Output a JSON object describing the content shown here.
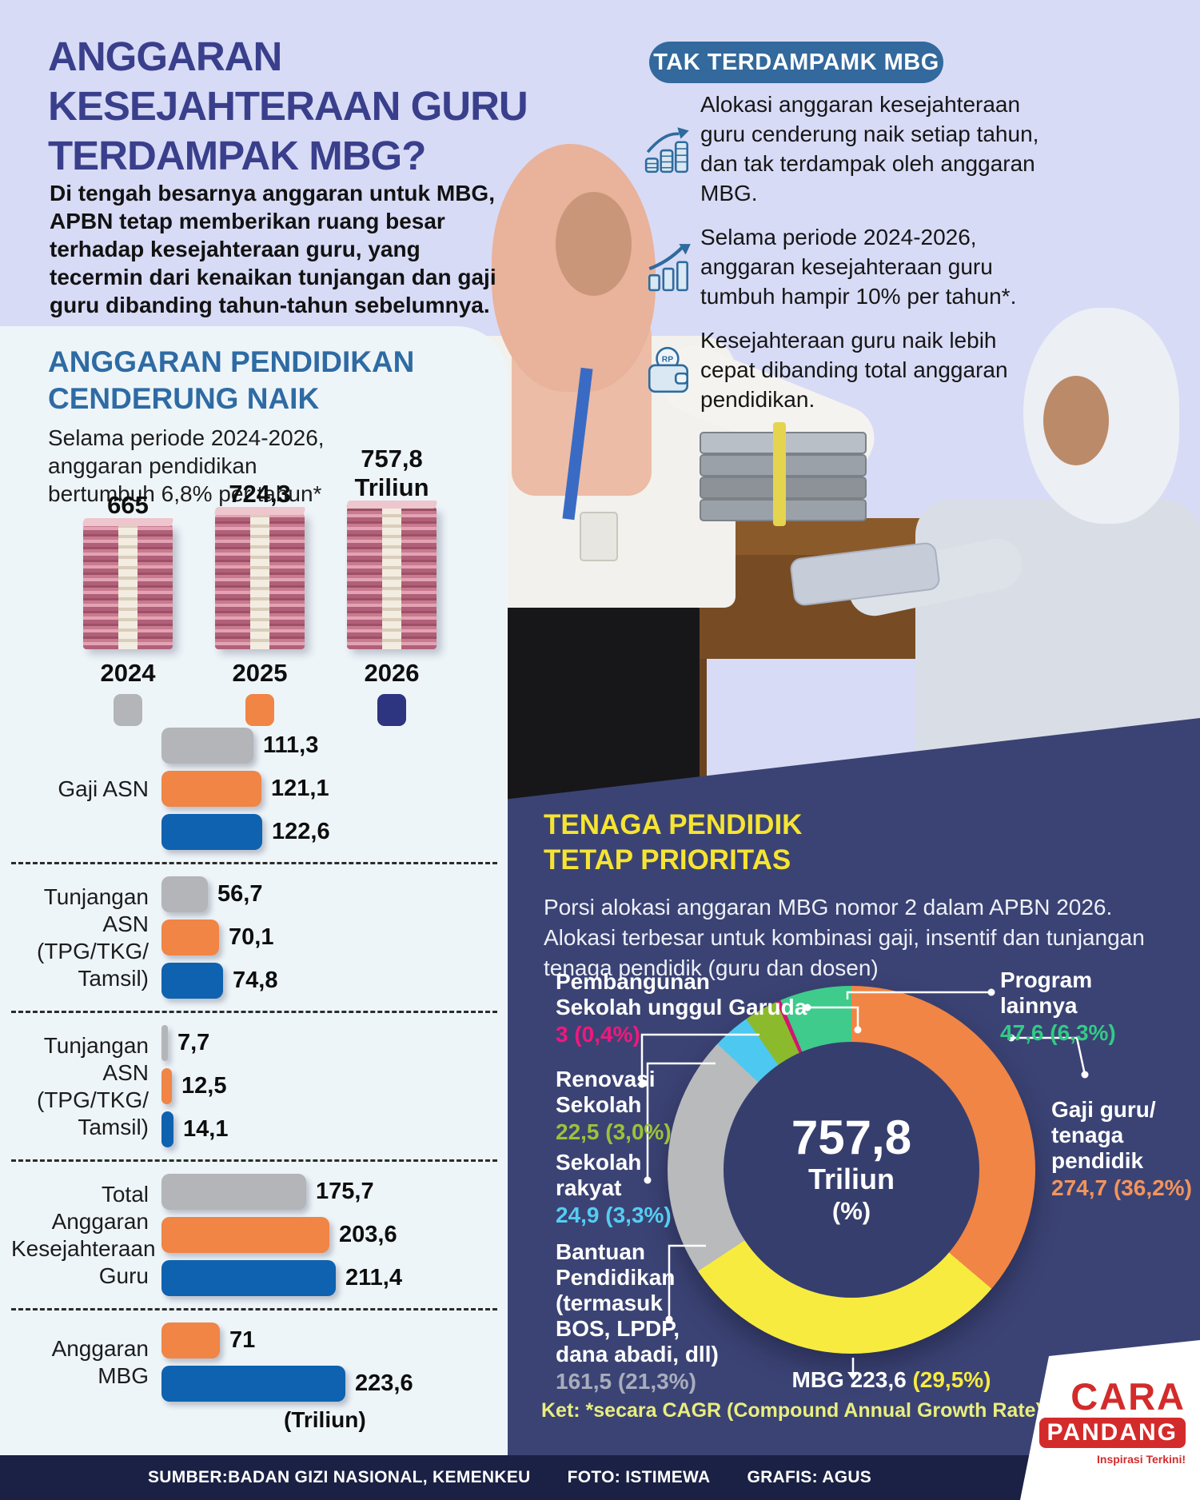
{
  "header": {
    "title_lines": [
      "ANGGARAN",
      "KESEJAHTERAAN GURU",
      "TERDAMPAK MBG?"
    ],
    "intro": "Di tengah besarnya anggaran untuk MBG, APBN tetap memberikan ruang besar terhadap kesejahteraan guru, yang tecermin dari kenaikan tunjangan dan gaji guru dibanding tahun-tahun sebelumnya."
  },
  "highlight_box": {
    "title": "TAK TERDAMPAMK MBG",
    "bullets": [
      {
        "icon": "coins-growth-icon",
        "text": "Alokasi anggaran kesejahteraan guru cenderung naik setiap tahun, dan tak terdampak oleh anggaran MBG."
      },
      {
        "icon": "chart-growth-icon",
        "text": "Selama periode 2024-2026, anggaran kesejahteraan guru tumbuh hampir 10% per tahun*."
      },
      {
        "icon": "wallet-icon",
        "text": "Kesejahteraan guru naik lebih cepat dibanding total anggaran pendidikan."
      }
    ]
  },
  "education_budget": {
    "heading": "ANGGARAN PENDIDIKAN CENDERUNG NAIK",
    "subtitle": "Selama periode 2024-2026, anggaran pendidikan bertumbuh 6,8% per tahun*",
    "stacks": [
      {
        "year": "2024",
        "value_label": "665",
        "num": 665,
        "legend_color": "#b3b5b8"
      },
      {
        "year": "2025",
        "value_label": "724,3",
        "num": 724.3,
        "legend_color": "#f08545"
      },
      {
        "year": "2026",
        "value_label": "757,8\nTriliun",
        "num": 757.8,
        "legend_color": "#2d3480"
      }
    ]
  },
  "bar_chart": {
    "colors": {
      "2024": "#b3b5b8",
      "2025": "#f08545",
      "2026": "#0e62b0"
    },
    "unit_label": "(Triliun)",
    "groups": [
      {
        "label": "Gaji ASN",
        "bars": [
          {
            "year": "2024",
            "value": "111,3",
            "num": 111.3
          },
          {
            "year": "2025",
            "value": "121,1",
            "num": 121.1
          },
          {
            "year": "2026",
            "value": "122,6",
            "num": 122.6
          }
        ]
      },
      {
        "label": "Tunjangan\nASN\n(TPG/TKG/\nTamsil)",
        "bars": [
          {
            "year": "2024",
            "value": "56,7",
            "num": 56.7
          },
          {
            "year": "2025",
            "value": "70,1",
            "num": 70.1
          },
          {
            "year": "2026",
            "value": "74,8",
            "num": 74.8
          }
        ]
      },
      {
        "label": "Tunjangan\nASN\n(TPG/TKG/\nTamsil)",
        "bars": [
          {
            "year": "2024",
            "value": "7,7",
            "num": 7.7
          },
          {
            "year": "2025",
            "value": "12,5",
            "num": 12.5
          },
          {
            "year": "2026",
            "value": "14,1",
            "num": 14.1
          }
        ]
      },
      {
        "label": "Total\nAnggaran\nKesejahteraan\nGuru",
        "bars": [
          {
            "year": "2024",
            "value": "175,7",
            "num": 175.7
          },
          {
            "year": "2025",
            "value": "203,6",
            "num": 203.6
          },
          {
            "year": "2026",
            "value": "211,4",
            "num": 211.4
          }
        ]
      },
      {
        "label": "Anggaran\nMBG",
        "bars": [
          {
            "year": "2025",
            "value": "71",
            "num": 71
          },
          {
            "year": "2026",
            "value": "223,6",
            "num": 223.6
          }
        ]
      }
    ]
  },
  "priority_section": {
    "heading": "TENAGA PENDIDIK\nTETAP PRIORITAS",
    "paragraph": "Porsi alokasi anggaran MBG nomor 2 dalam APBN 2026. Alokasi terbesar untuk kombinasi gaji, insentif dan tunjangan tenaga pendidik (guru dan dosen)",
    "note": "Ket: *secara CAGR (Compound Annual Growth Rate)"
  },
  "donut": {
    "center": {
      "value": "757,8",
      "unit": "Triliun",
      "suffix": "(%)"
    },
    "slices": [
      {
        "key": "gaji_guru",
        "label": "Gaji guru/\ntenaga\npendidik",
        "value": "274,7 (36,2%)",
        "pct": 36.2,
        "color": "#f08545",
        "value_color": "#f2945c"
      },
      {
        "key": "mbg",
        "label": "MBG 223,6",
        "value": "(29,5%)",
        "pct": 29.5,
        "color": "#f8eb40",
        "value_color": "#f8eb40"
      },
      {
        "key": "bantuan",
        "label": "Bantuan\nPendidikan\n(termasuk\nBOS, LPDP,\ndana abadi, dll)",
        "value": "161,5 (21,3%)",
        "pct": 21.3,
        "color": "#b8babc",
        "value_color": "#a8adbc"
      },
      {
        "key": "sekolah_rakyat",
        "label": "Sekolah\nrakyat",
        "value": "24,9 (3,3%)",
        "pct": 3.3,
        "color": "#4dc8f0",
        "value_color": "#55cdf2"
      },
      {
        "key": "renovasi",
        "label": "Renovasi\nSekolah",
        "value": "22,5 (3,0%)",
        "pct": 3.0,
        "color": "#8cba2d",
        "value_color": "#9cc238"
      },
      {
        "key": "pembangunan",
        "label": "Pembangunan\nSekolah unggul Garuda",
        "value": "3 (0,4%)",
        "pct": 0.4,
        "color": "#d4156f",
        "value_color": "#f0187c"
      },
      {
        "key": "program_lainnya",
        "label": "Program\nlainnya",
        "value": "47,6 (6,3%)",
        "pct": 6.3,
        "color": "#3ecb8b",
        "value_color": "#33ca86"
      }
    ]
  },
  "footer": {
    "items": [
      "SUMBER:BADAN GIZI NASIONAL, KEMENKEU",
      "FOTO: ISTIMEWA",
      "GRAFIS: AGUS"
    ]
  },
  "logo": {
    "line1": "CARA",
    "line2": "PANDANG",
    "tagline": "Inspirasi Terkini!"
  },
  "chart_data": [
    {
      "type": "bar",
      "title": "ANGGARAN PENDIDIKAN CENDERUNG NAIK",
      "subtitle": "Selama periode 2024-2026, anggaran pendidikan bertumbuh 6,8% per tahun*",
      "categories": [
        "2024",
        "2025",
        "2026"
      ],
      "values": [
        665,
        724.3,
        757.8
      ],
      "ylabel": "Triliun"
    },
    {
      "type": "bar",
      "orientation": "horizontal",
      "unit": "Triliun",
      "categories": [
        "Gaji ASN",
        "Tunjangan ASN (TPG/TKG/Tamsil)",
        "Tunjangan ASN (TPG/TKG/Tamsil)",
        "Total Anggaran Kesejahteraan Guru",
        "Anggaran MBG"
      ],
      "series": [
        {
          "name": "2024",
          "values": [
            111.3,
            56.7,
            7.7,
            175.7,
            null
          ]
        },
        {
          "name": "2025",
          "values": [
            121.1,
            70.1,
            12.5,
            203.6,
            71
          ]
        },
        {
          "name": "2026",
          "values": [
            122.6,
            74.8,
            14.1,
            211.4,
            223.6
          ]
        }
      ]
    },
    {
      "type": "pie",
      "title": "757,8 Triliun (%)",
      "labels": [
        "Gaji guru/tenaga pendidik",
        "MBG",
        "Bantuan Pendidikan (termasuk BOS, LPDP, dana abadi, dll)",
        "Sekolah rakyat",
        "Renovasi Sekolah",
        "Pembangunan Sekolah unggul Garuda",
        "Program lainnya"
      ],
      "values": [
        274.7,
        223.6,
        161.5,
        24.9,
        22.5,
        3,
        47.6
      ],
      "percentages": [
        36.2,
        29.5,
        21.3,
        3.3,
        3.0,
        0.4,
        6.3
      ]
    }
  ]
}
